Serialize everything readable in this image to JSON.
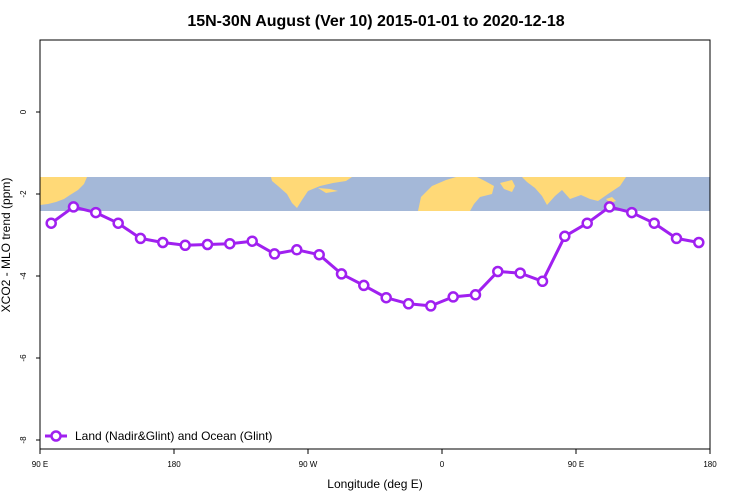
{
  "chart_data": {
    "type": "line",
    "title": "15N-30N August (Ver 10)   2015-01-01 to 2020-12-18",
    "xlabel": "Longitude (deg E)",
    "ylabel": "XCO2 - MLO trend (ppm)",
    "xlim": [
      -90,
      180
    ],
    "ylim": [
      -8.2,
      1.8
    ],
    "x_ticks": [
      {
        "value": -90,
        "label": "90 E"
      },
      {
        "value": -36,
        "label": "180"
      },
      {
        "value": 18,
        "label": "90 W"
      },
      {
        "value": 72,
        "label": "0"
      },
      {
        "value": 126,
        "label": "90 E"
      },
      {
        "value": 180,
        "label": "180"
      }
    ],
    "y_ticks": [
      {
        "value": -8,
        "label": "-8"
      },
      {
        "value": -6,
        "label": "-6"
      },
      {
        "value": -4,
        "label": "-4"
      },
      {
        "value": -2,
        "label": "-2"
      },
      {
        "value": 0,
        "label": "0"
      }
    ],
    "map_band": {
      "ymin": -2.35,
      "ymax": -1.55,
      "ocean_color": "#a4b8d8",
      "land_color": "#ffd977"
    },
    "series": [
      {
        "name": "Land (Nadir&Glint) and Ocean (Glint)",
        "color": "#a020f0",
        "x": [
          -85.5,
          -76.5,
          -67.5,
          -58.5,
          -49.5,
          -40.5,
          -31.5,
          -22.5,
          -13.5,
          -4.5,
          4.5,
          13.5,
          22.5,
          31.5,
          40.5,
          49.5,
          58.5,
          67.5,
          76.5,
          85.5,
          94.5,
          103.5,
          112.5,
          121.5,
          130.5,
          139.5,
          148.5,
          157.5,
          166.5,
          175.5
        ],
        "values": [
          -2.68,
          -2.28,
          -2.42,
          -2.68,
          -3.05,
          -3.15,
          -3.22,
          -3.2,
          -3.18,
          -3.12,
          -3.43,
          -3.33,
          -3.45,
          -3.92,
          -4.2,
          -4.5,
          -4.65,
          -4.7,
          -4.48,
          -4.43,
          -3.86,
          -3.9,
          -4.1,
          -3.0,
          -2.68,
          -2.28,
          -2.42,
          -2.68,
          -3.05,
          -3.15
        ]
      }
    ],
    "legend": {
      "position": "bottom-left",
      "label": "Land (Nadir&Glint) and Ocean (Glint)"
    }
  }
}
